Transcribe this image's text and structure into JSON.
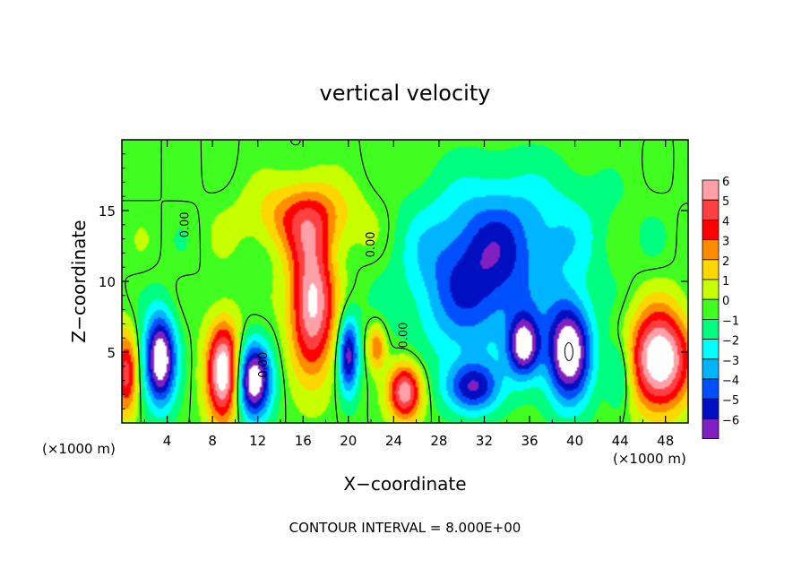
{
  "chart_data": {
    "type": "heatmap",
    "title": "vertical velocity",
    "xlabel": "X−coordinate",
    "ylabel": "Z−coordinate",
    "x_unit_left": "(×1000 m)",
    "x_unit_right": "(×1000 m)",
    "footer": "CONTOUR INTERVAL = 8.000E+00",
    "xlim": [
      0,
      50
    ],
    "ylim": [
      0,
      20
    ],
    "x_ticks": [
      4,
      8,
      12,
      16,
      20,
      24,
      28,
      32,
      36,
      40,
      44,
      48
    ],
    "x_tick_labels": [
      "4",
      "8",
      "12",
      "16",
      "20",
      "24",
      "28",
      "32",
      "36",
      "40",
      "44",
      "48"
    ],
    "y_ticks": [
      5,
      10,
      15
    ],
    "y_tick_labels": [
      "5",
      "10",
      "15"
    ],
    "contour_labels": [
      {
        "text": "0.00",
        "x": 5.9,
        "y": 14.0
      },
      {
        "text": "0.00",
        "x": 22.3,
        "y": 12.6
      },
      {
        "text": "0.00",
        "x": 12.8,
        "y": 4.1
      },
      {
        "text": "0.00",
        "x": 25.2,
        "y": 6.2
      }
    ],
    "colorbar": {
      "levels": [
        6,
        5,
        4,
        3,
        2,
        1,
        0,
        -1,
        -2,
        -3,
        -4,
        -5,
        -6
      ],
      "labels": [
        "6",
        "5",
        "4",
        "3",
        "2",
        "1",
        "0",
        "−1",
        "−2",
        "−3",
        "−4",
        "−5",
        "−6"
      ],
      "colors": [
        "#ff9fa8",
        "#ff4040",
        "#ff0000",
        "#ff8c00",
        "#ffd700",
        "#c8ff00",
        "#40ff20",
        "#00ff80",
        "#00ffff",
        "#00b4ff",
        "#0050ff",
        "#0010c0",
        "#8020c0"
      ]
    },
    "field_background_color": "#3cf23c",
    "features": [
      {
        "kind": "updraft",
        "x": 9.0,
        "z": 3.6,
        "sx": 1.5,
        "sz": 3.5,
        "amp": 8
      },
      {
        "kind": "updraft",
        "x": 16.8,
        "z": 8.5,
        "sx": 2.0,
        "sz": 5.0,
        "amp": 7
      },
      {
        "kind": "updraft",
        "x": 16.0,
        "z": 14.5,
        "sx": 4.5,
        "sz": 2.5,
        "amp": 3.5
      },
      {
        "kind": "updraft",
        "x": 25.0,
        "z": 2.2,
        "sx": 1.5,
        "sz": 2.0,
        "amp": 6.5
      },
      {
        "kind": "updraft",
        "x": 22.5,
        "z": 5.4,
        "sx": 0.8,
        "sz": 1.6,
        "amp": 3.5
      },
      {
        "kind": "updraft",
        "x": 47.5,
        "z": 4.5,
        "sx": 2.7,
        "sz": 3.5,
        "amp": 8
      },
      {
        "kind": "updraft",
        "x": 0.4,
        "z": 3.5,
        "sx": 1.0,
        "sz": 3.0,
        "amp": 5
      },
      {
        "kind": "downdraft",
        "x": 3.4,
        "z": 4.5,
        "sx": 1.4,
        "sz": 3.2,
        "amp": -8
      },
      {
        "kind": "downdraft",
        "x": 11.6,
        "z": 3.0,
        "sx": 1.6,
        "sz": 2.7,
        "amp": -8
      },
      {
        "kind": "downdraft",
        "x": 20.0,
        "z": 4.8,
        "sx": 0.9,
        "sz": 2.8,
        "amp": -6
      },
      {
        "kind": "downdraft",
        "x": 39.5,
        "z": 5.0,
        "sx": 2.0,
        "sz": 3.6,
        "amp": -8
      },
      {
        "kind": "downdraft",
        "x": 35.5,
        "z": 5.4,
        "sx": 1.4,
        "sz": 2.2,
        "amp": -6.5
      },
      {
        "kind": "downdraft",
        "x": 31.0,
        "z": 2.5,
        "sx": 2.4,
        "sz": 1.8,
        "amp": -5
      },
      {
        "kind": "downdraft",
        "x": 31.0,
        "z": 10.0,
        "sx": 5.5,
        "sz": 5.5,
        "amp": -4.5
      },
      {
        "kind": "downdraft",
        "x": 36.0,
        "z": 13.5,
        "sx": 7.0,
        "sz": 4.5,
        "amp": -2.3
      },
      {
        "kind": "downdraft",
        "x": 44.0,
        "z": 3.5,
        "sx": 1.2,
        "sz": 2.5,
        "amp": -2.5
      }
    ]
  }
}
